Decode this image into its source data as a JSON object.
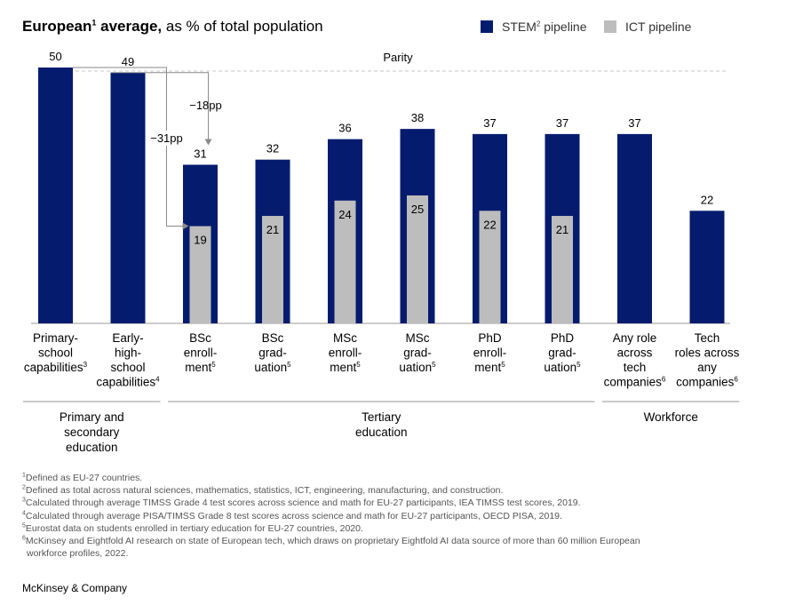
{
  "title": {
    "bold": "European",
    "bold_sup": "1",
    "bold_rest": " average,",
    "rest": " as % of total population"
  },
  "legend": [
    {
      "label": "STEM",
      "sup": "2",
      "rest": " pipeline",
      "color": "#051c6e"
    },
    {
      "label": "ICT pipeline",
      "sup": "",
      "rest": "",
      "color": "#bdbdbd"
    }
  ],
  "parity_label": "Parity",
  "chart_data": {
    "type": "bar",
    "categories": [
      {
        "lines": [
          "Primary-",
          "school",
          "capabilities"
        ],
        "sup": "3"
      },
      {
        "lines": [
          "Early-",
          "high-",
          "school",
          "capabilities"
        ],
        "sup": "4"
      },
      {
        "lines": [
          "BSc",
          "enroll-",
          "ment"
        ],
        "sup": "5"
      },
      {
        "lines": [
          "BSc",
          "grad-",
          "uation"
        ],
        "sup": "5"
      },
      {
        "lines": [
          "MSc",
          "enroll-",
          "ment"
        ],
        "sup": "5"
      },
      {
        "lines": [
          "MSc",
          "grad-",
          "uation"
        ],
        "sup": "5"
      },
      {
        "lines": [
          "PhD",
          "enroll-",
          "ment"
        ],
        "sup": "5"
      },
      {
        "lines": [
          "PhD",
          "grad-",
          "uation"
        ],
        "sup": "5"
      },
      {
        "lines": [
          "Any role",
          "across",
          "tech",
          "companies"
        ],
        "sup": "6"
      },
      {
        "lines": [
          "Tech",
          "roles across",
          "any",
          "companies"
        ],
        "sup": "6"
      }
    ],
    "series": [
      {
        "name": "STEM pipeline",
        "color": "#051c6e",
        "values": [
          50,
          49,
          31,
          32,
          36,
          38,
          37,
          37,
          37,
          22
        ]
      },
      {
        "name": "ICT pipeline",
        "color": "#bdbdbd",
        "values": [
          null,
          null,
          19,
          21,
          24,
          25,
          22,
          21,
          null,
          null
        ]
      }
    ],
    "parity_value": 50,
    "ylim": [
      0,
      50
    ],
    "annotations": [
      {
        "label": "−18pp",
        "from_category": 1,
        "to_category": 2,
        "series": "STEM pipeline"
      },
      {
        "label": "−31pp",
        "from_category": 0,
        "to_category": 2,
        "series": "ICT pipeline"
      }
    ],
    "groups": [
      {
        "lines": [
          "Primary and",
          "secondary",
          "education"
        ],
        "categories": [
          0,
          1
        ]
      },
      {
        "lines": [
          "Tertiary",
          "education"
        ],
        "categories": [
          2,
          3,
          4,
          5,
          6,
          7
        ]
      },
      {
        "lines": [
          "Workforce"
        ],
        "categories": [
          8,
          9
        ]
      }
    ]
  },
  "footnotes": [
    {
      "sup": "1",
      "text": "Defined as EU-27 countries."
    },
    {
      "sup": "2",
      "text": "Defined as total across natural sciences, mathematics, statistics, ICT, engineering, manufacturing, and construction."
    },
    {
      "sup": "3",
      "text": "Calculated through average TIMSS Grade 4 test scores across science and math for EU-27 participants, IEA TIMSS test scores, 2019."
    },
    {
      "sup": "4",
      "text": "Calculated through average PISA/TIMSS Grade 8 test scores across science and math for EU-27 participants, OECD PISA, 2019."
    },
    {
      "sup": "5",
      "text": "Eurostat data on students enrolled in tertiary education for EU-27 countries, 2020."
    },
    {
      "sup": "6",
      "text": "McKinsey and Eightfold AI research on state of European tech, which draws on proprietary Eightfold AI data source of more than 60 million European"
    },
    {
      "sup": "",
      "text": "workforce profiles, 2022."
    }
  ],
  "brand": "McKinsey & Company"
}
